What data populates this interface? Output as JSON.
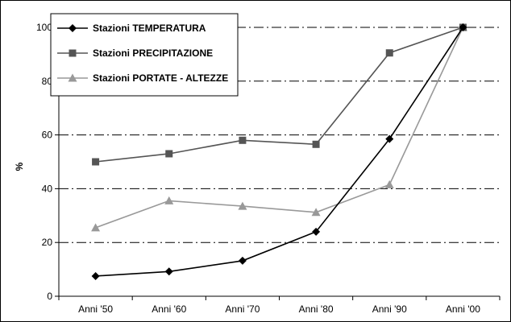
{
  "chart_data": {
    "type": "line",
    "categories": [
      "Anni '50",
      "Anni '60",
      "Anni '70",
      "Anni '80",
      "Anni '90",
      "Anni '00"
    ],
    "ylabel": "%",
    "xlabel": "",
    "ylim": [
      0,
      100
    ],
    "yticks": [
      0,
      20,
      40,
      60,
      80,
      100
    ],
    "grid": "horizontal dash-dot",
    "legend_position": "top-left",
    "series": [
      {
        "name": "Stazioni TEMPERATURA",
        "marker": "diamond",
        "color": "#000000",
        "values": [
          7.5,
          9.2,
          13.2,
          24,
          58.5,
          100
        ]
      },
      {
        "name": "Stazioni PRECIPITAZIONE",
        "marker": "square",
        "color": "#555555",
        "values": [
          50,
          53,
          58,
          56.5,
          90.5,
          100
        ]
      },
      {
        "name": "Stazioni PORTATE - ALTEZZE",
        "marker": "triangle",
        "color": "#999999",
        "values": [
          25.5,
          35.5,
          33.5,
          31.2,
          41.5,
          100
        ]
      }
    ]
  }
}
